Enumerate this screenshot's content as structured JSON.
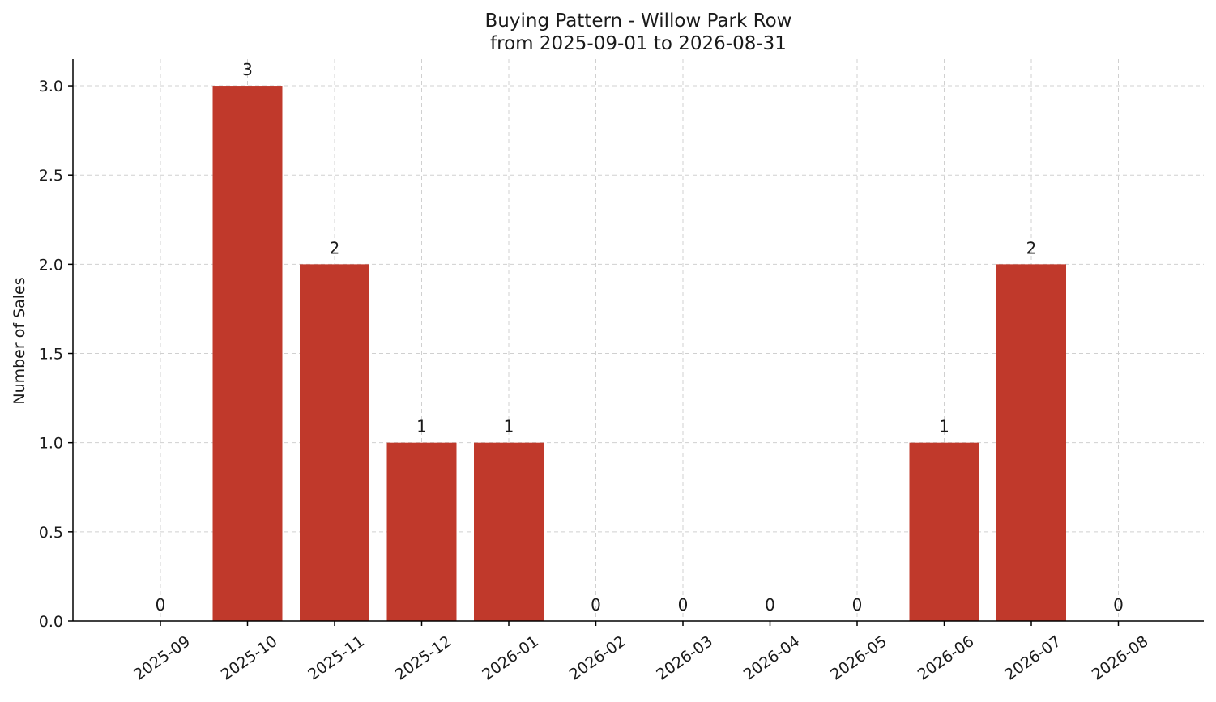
{
  "chart_data": {
    "type": "bar",
    "title": "Buying Pattern - Willow Park Row",
    "subtitle": "from 2025-09-01 to 2026-08-31",
    "xlabel": "",
    "ylabel": "Number of Sales",
    "categories": [
      "2025-09",
      "2025-10",
      "2025-11",
      "2025-12",
      "2026-01",
      "2026-02",
      "2026-03",
      "2026-04",
      "2026-05",
      "2026-06",
      "2026-07",
      "2026-08"
    ],
    "values": [
      0,
      3,
      2,
      1,
      1,
      0,
      0,
      0,
      0,
      1,
      2,
      0
    ],
    "data_labels": [
      "0",
      "3",
      "2",
      "1",
      "1",
      "0",
      "0",
      "0",
      "0",
      "1",
      "2",
      "0"
    ],
    "ylim": [
      0,
      3.15
    ],
    "yticks": [
      0.0,
      0.5,
      1.0,
      1.5,
      2.0,
      2.5,
      3.0
    ],
    "ytick_labels": [
      "0.0",
      "0.5",
      "1.0",
      "1.5",
      "2.0",
      "2.5",
      "3.0"
    ],
    "bar_color": "#c0392b",
    "grid": true,
    "legend": "none"
  }
}
